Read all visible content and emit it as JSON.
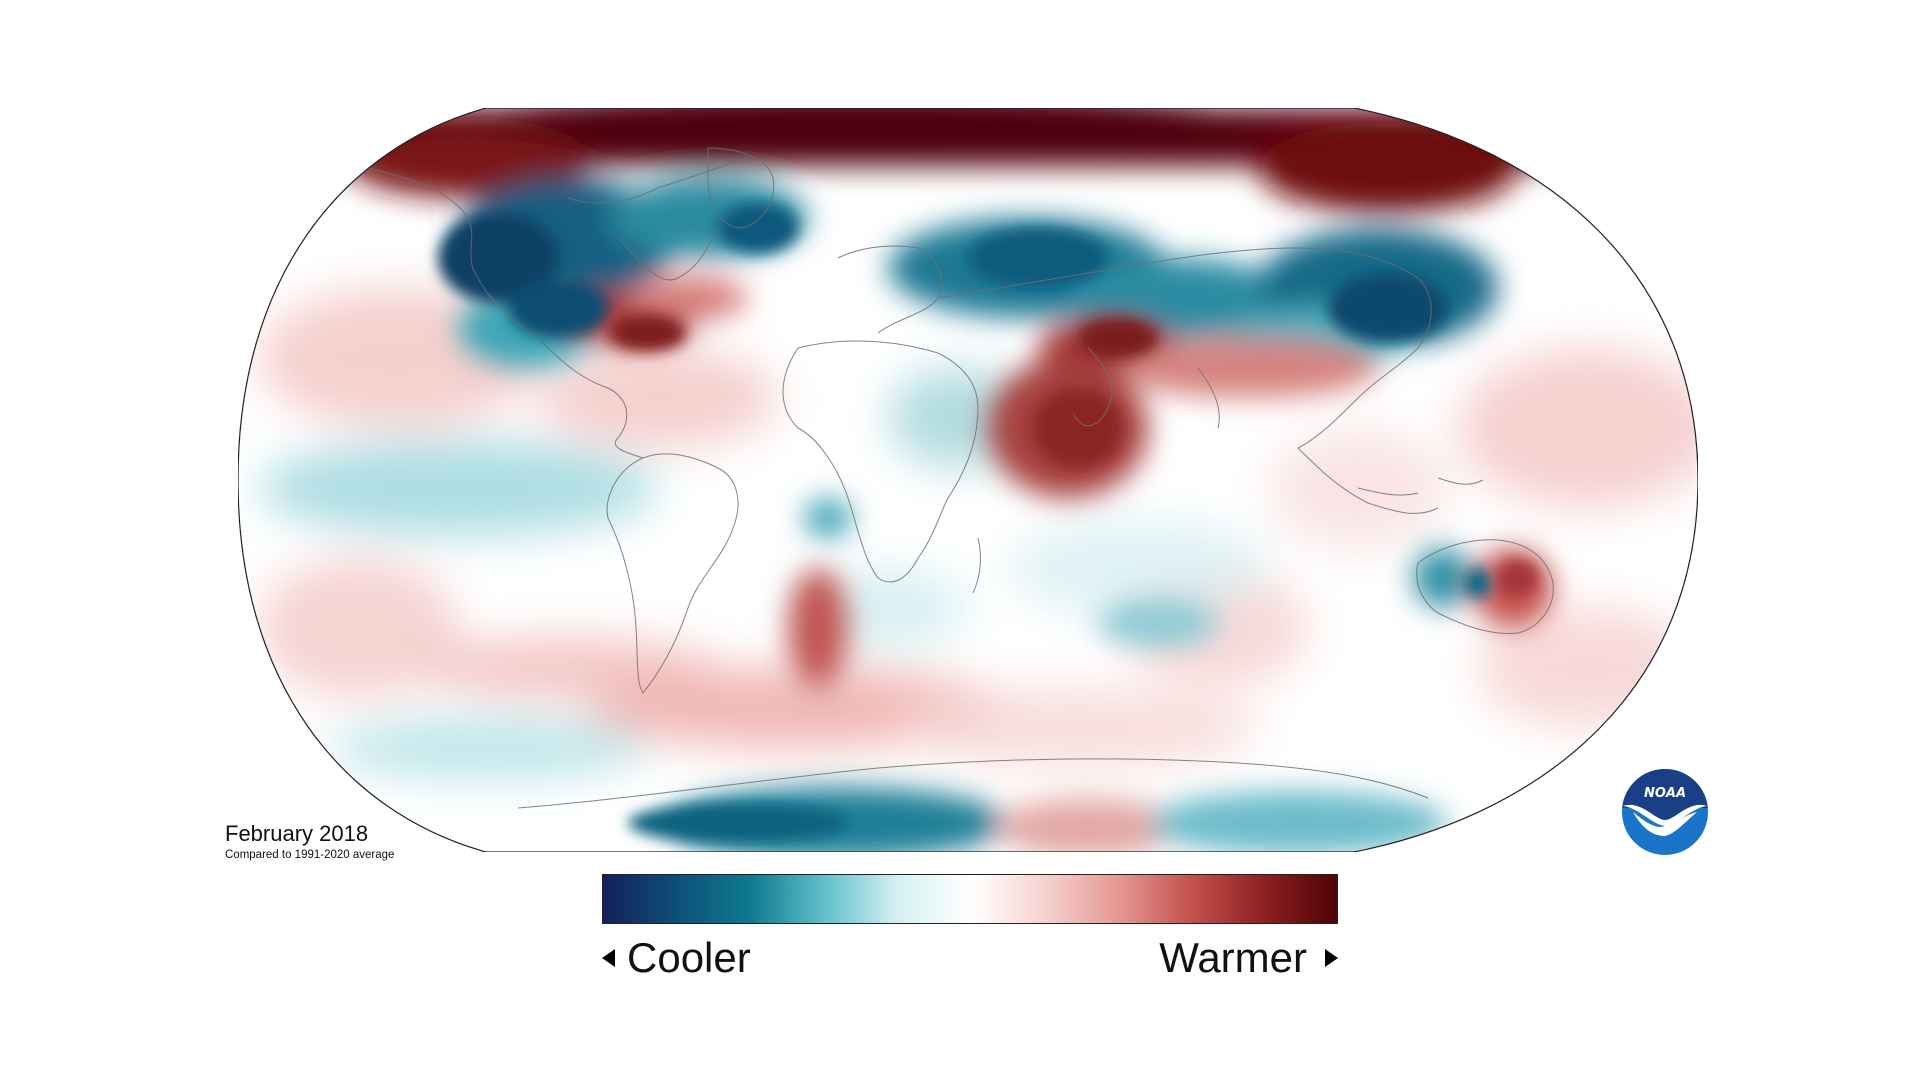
{
  "map": {
    "projection": "robinson",
    "period_label": "February 2018",
    "comparison_note": "Compared to 1991-2020 average"
  },
  "legend": {
    "cooler_label": "Cooler",
    "warmer_label": "Warmer",
    "colors": [
      "#14205a",
      "#0d4f78",
      "#0e7a8f",
      "#5fbfcb",
      "#d4f0f2",
      "#ffffff",
      "#f6d3d1",
      "#e69a95",
      "#c4524e",
      "#8f1f20",
      "#4d0408"
    ]
  },
  "colors": {
    "cool_strong": "#0c4a6e",
    "cool_mid": "#2f8fa3",
    "cool_light": "#bfe6ea",
    "neutral": "#ffffff",
    "warm_light": "#f6cfcd",
    "warm_mid": "#d26b66",
    "warm_strong": "#6e0d10",
    "coastline": "#6f6f6f"
  },
  "logo": {
    "text": "NOAA",
    "name": "noaa-logo"
  }
}
